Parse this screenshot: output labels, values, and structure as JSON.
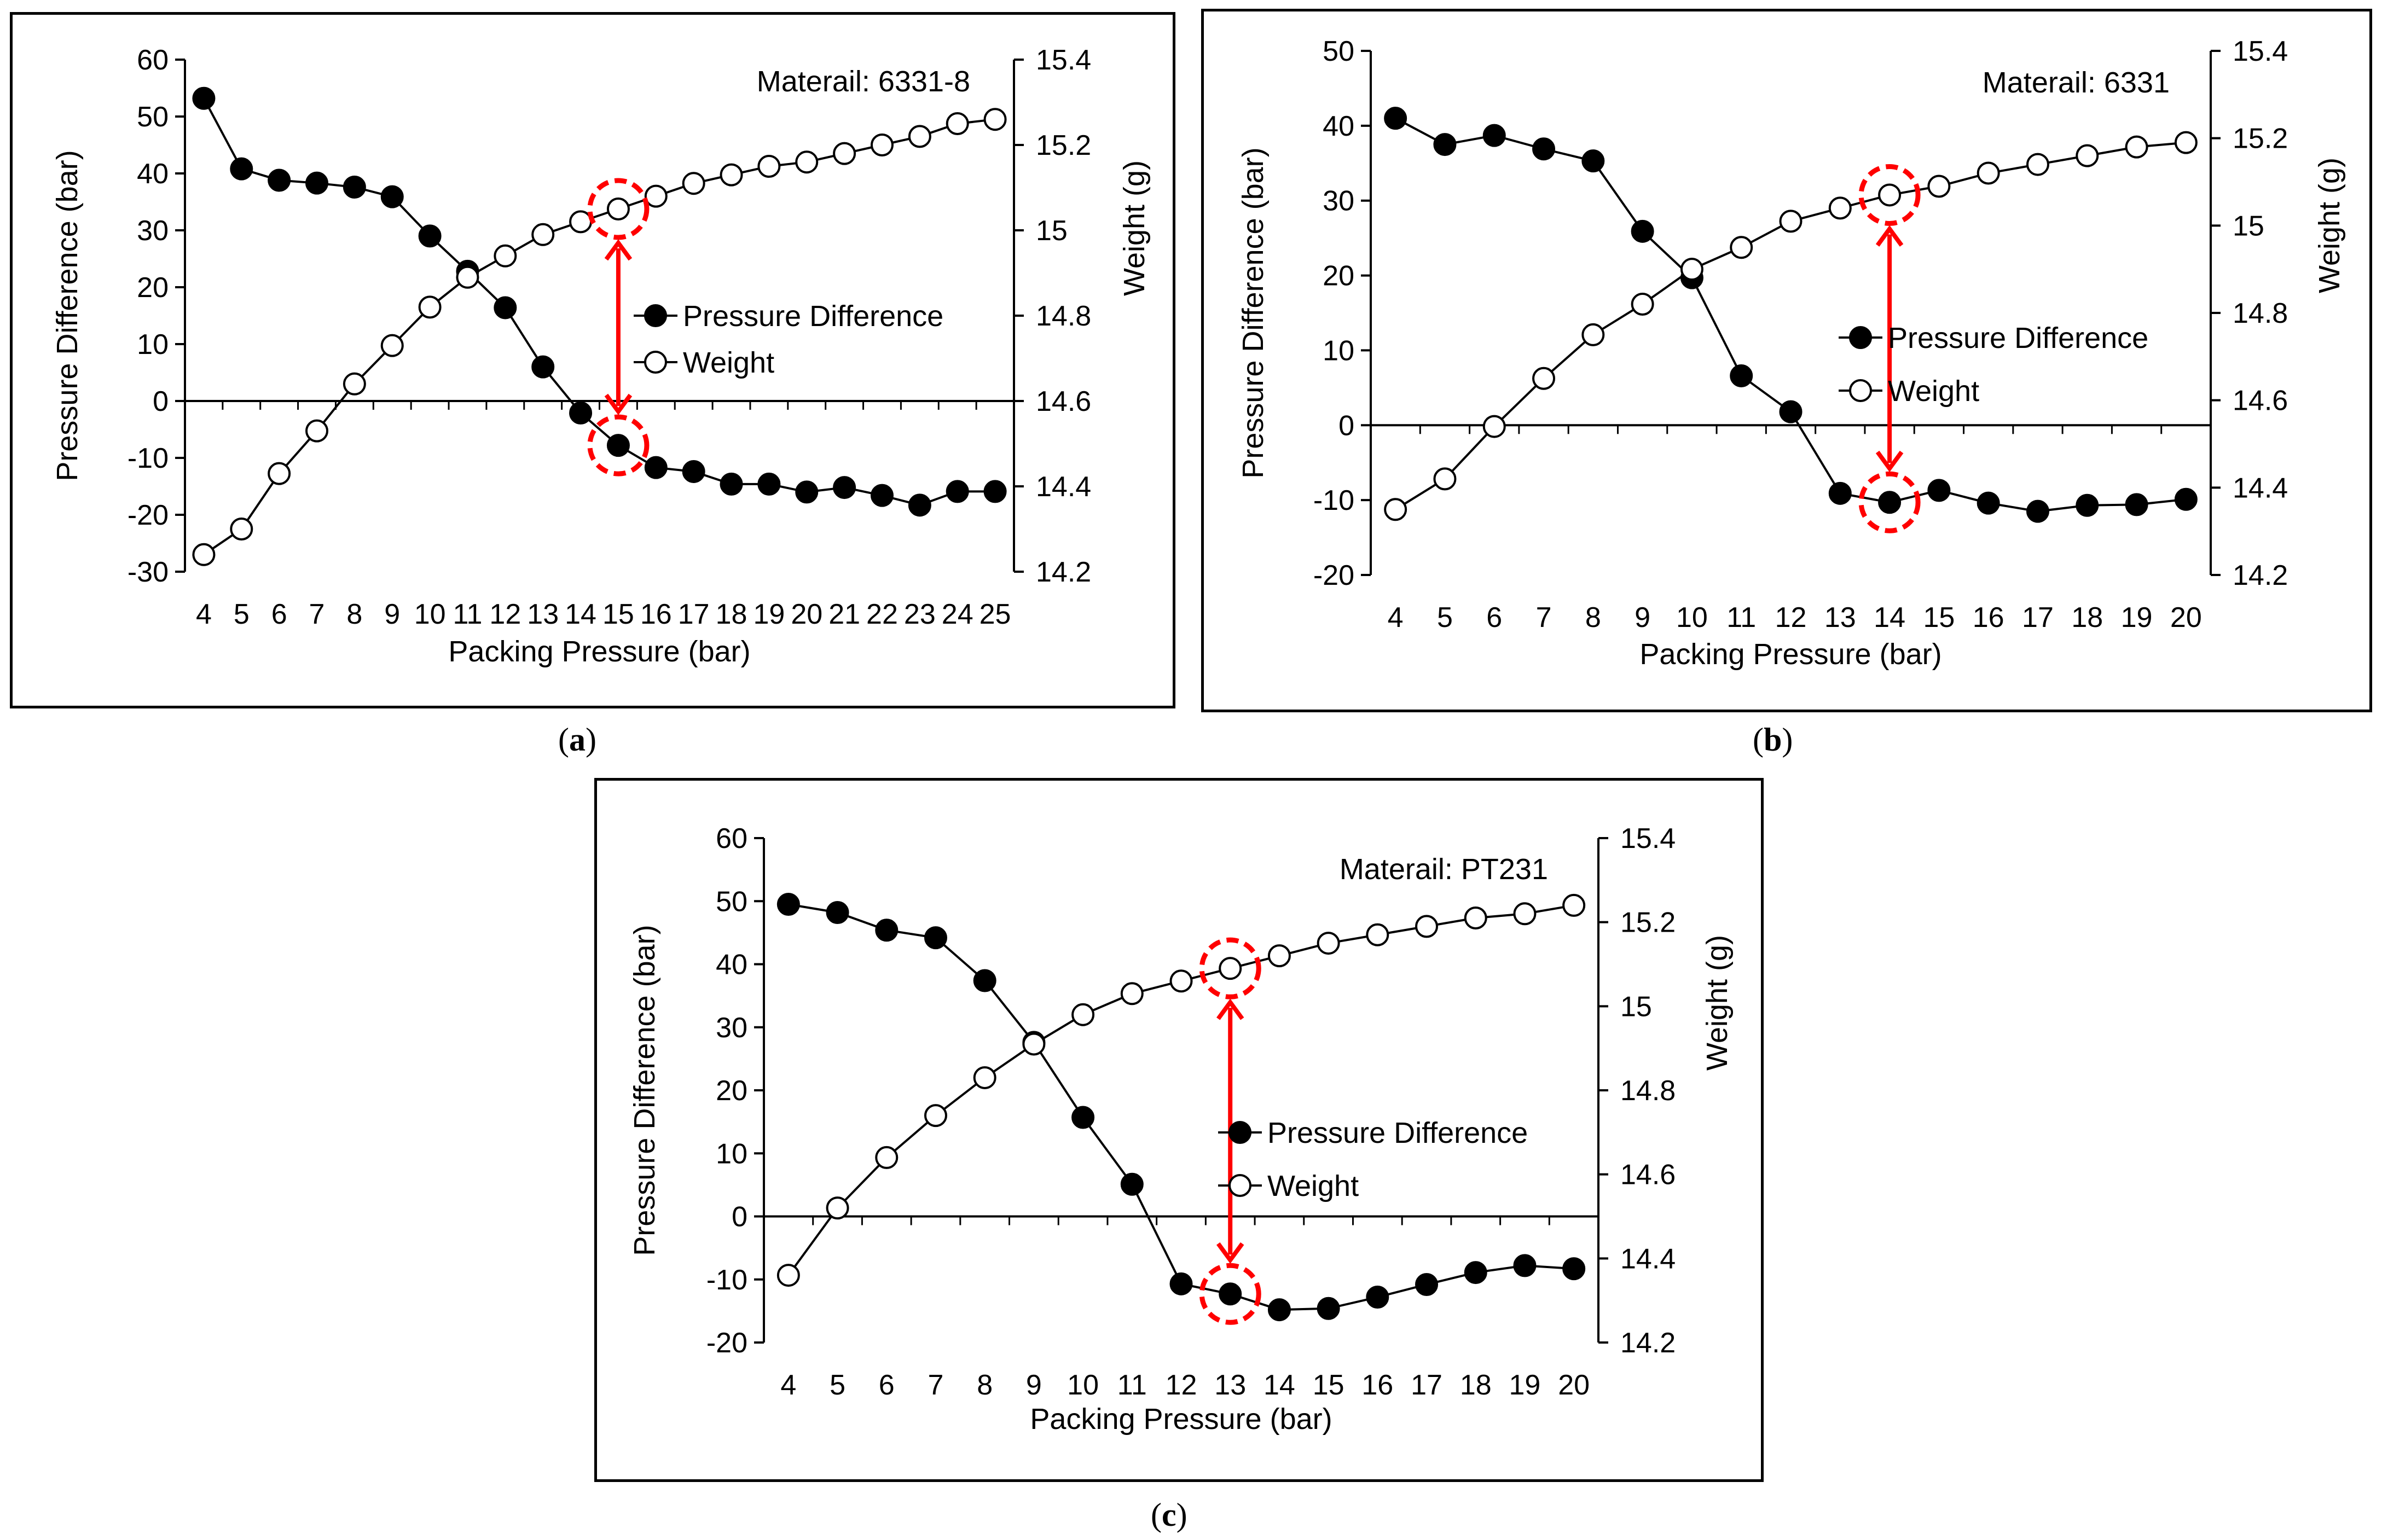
{
  "figure": {
    "captions": [
      "a",
      "b",
      "c"
    ]
  },
  "chart_data": [
    {
      "type": "line",
      "id": "a",
      "annotation": "Materail: 6331-8",
      "xlabel": "Packing Pressure (bar)",
      "ylabel": "Pressure Difference (bar)",
      "y2label": "Weight (g)",
      "categories": [
        4,
        5,
        6,
        7,
        8,
        9,
        10,
        11,
        12,
        13,
        14,
        15,
        16,
        17,
        18,
        19,
        20,
        21,
        22,
        23,
        24,
        25
      ],
      "ylim": [
        -30,
        60
      ],
      "yticks": [
        -30,
        -20,
        -10,
        0,
        10,
        20,
        30,
        40,
        50,
        60
      ],
      "y2lim": [
        14.2,
        15.4
      ],
      "y2ticks": [
        "14.2",
        "14.4",
        "14.6",
        "14.8",
        "15",
        "15.2",
        "15.4"
      ],
      "series": [
        {
          "name": "Pressure Difference",
          "axis": "y",
          "marker": "filled",
          "values": [
            53.2,
            40.8,
            38.8,
            38.3,
            37.6,
            35.9,
            29.0,
            22.8,
            16.4,
            6.0,
            -2.1,
            -7.8,
            -11.7,
            -12.4,
            -14.6,
            -14.6,
            -16.0,
            -15.2,
            -16.6,
            -18.3,
            -15.9,
            -15.9
          ]
        },
        {
          "name": "Weight",
          "axis": "y2",
          "marker": "open",
          "values": [
            14.24,
            14.3,
            14.43,
            14.53,
            14.64,
            14.73,
            14.82,
            14.89,
            14.94,
            14.99,
            15.02,
            15.05,
            15.08,
            15.11,
            15.13,
            15.15,
            15.16,
            15.18,
            15.2,
            15.22,
            15.25,
            15.26
          ]
        }
      ],
      "highlight": {
        "x": 15,
        "weight": 15.05,
        "pressure_difference": -7.8
      },
      "legend_position": "center-right"
    },
    {
      "type": "line",
      "id": "b",
      "annotation": "Materail: 6331",
      "xlabel": "Packing Pressure (bar)",
      "ylabel": "Pressure Difference (bar)",
      "y2label": "Weight (g)",
      "categories": [
        4,
        5,
        6,
        7,
        8,
        9,
        10,
        11,
        12,
        13,
        14,
        15,
        16,
        17,
        18,
        19,
        20
      ],
      "ylim": [
        -20,
        50
      ],
      "yticks": [
        -20,
        -10,
        0,
        10,
        20,
        30,
        40,
        50
      ],
      "y2lim": [
        14.2,
        15.4
      ],
      "y2ticks": [
        "14.2",
        "14.4",
        "14.6",
        "14.8",
        "15",
        "15.2",
        "15.4"
      ],
      "series": [
        {
          "name": "Pressure Difference",
          "axis": "y",
          "marker": "filled",
          "values": [
            41.0,
            37.5,
            38.7,
            36.9,
            35.3,
            25.9,
            19.7,
            6.6,
            1.8,
            -9.1,
            -10.3,
            -8.7,
            -10.4,
            -11.5,
            -10.7,
            -10.6,
            -9.9
          ]
        },
        {
          "name": "Weight",
          "axis": "y2",
          "marker": "open",
          "values": [
            14.35,
            14.42,
            14.54,
            14.65,
            14.75,
            14.82,
            14.9,
            14.95,
            15.01,
            15.04,
            15.07,
            15.09,
            15.12,
            15.14,
            15.16,
            15.18,
            15.19
          ]
        }
      ],
      "highlight": {
        "x": 14,
        "weight": 15.07,
        "pressure_difference": -10.3
      },
      "legend_position": "center-right"
    },
    {
      "type": "line",
      "id": "c",
      "annotation": "Materail: PT231",
      "xlabel": "Packing Pressure (bar)",
      "ylabel": "Pressure Difference (bar)",
      "y2label": "Weight (g)",
      "categories": [
        4,
        5,
        6,
        7,
        8,
        9,
        10,
        11,
        12,
        13,
        14,
        15,
        16,
        17,
        18,
        19,
        20
      ],
      "ylim": [
        -20,
        60
      ],
      "yticks": [
        -20,
        -10,
        0,
        10,
        20,
        30,
        40,
        50,
        60
      ],
      "y2lim": [
        14.2,
        15.4
      ],
      "y2ticks": [
        "14.2",
        "14.4",
        "14.6",
        "14.8",
        "15",
        "15.2",
        "15.4"
      ],
      "series": [
        {
          "name": "Pressure Difference",
          "axis": "y",
          "marker": "filled",
          "values": [
            49.5,
            48.2,
            45.4,
            44.2,
            37.4,
            27.6,
            15.7,
            5.1,
            -10.7,
            -12.3,
            -14.8,
            -14.6,
            -12.8,
            -10.8,
            -8.9,
            -7.8,
            -8.3
          ]
        },
        {
          "name": "Weight",
          "axis": "y2",
          "marker": "open",
          "values": [
            14.36,
            14.52,
            14.64,
            14.74,
            14.83,
            14.91,
            14.98,
            15.03,
            15.06,
            15.09,
            15.12,
            15.15,
            15.17,
            15.19,
            15.21,
            15.22,
            15.24
          ]
        }
      ],
      "highlight": {
        "x": 13,
        "weight": 15.09,
        "pressure_difference": -12.3
      },
      "legend_position": "center-right"
    }
  ]
}
